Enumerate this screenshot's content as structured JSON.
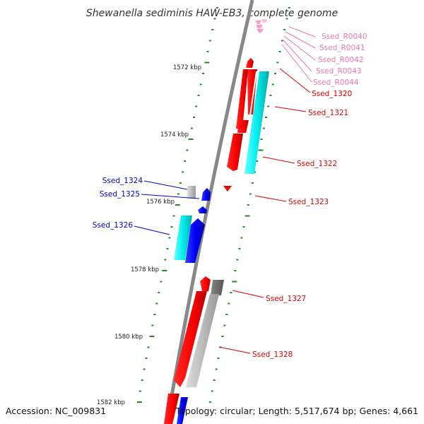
{
  "map": {
    "title": "Shewanella sediminis HAW-EB3, complete genome",
    "accession": "Accession: NC_009831",
    "summary": "Topology: circular; Length: 5,517,674 bp; Genes: 4,661"
  },
  "ticks": [
    "1572 kbp",
    "1574 kbp",
    "1576 kbp",
    "1578 kbp",
    "1580 kbp",
    "1582 kbp"
  ],
  "genes": [
    {
      "label": "Ssed_R0040",
      "color": "#ee77aa"
    },
    {
      "label": "Ssed_R0041",
      "color": "#ee77aa"
    },
    {
      "label": "Ssed_R0042",
      "color": "#ee77aa"
    },
    {
      "label": "Ssed_R0043",
      "color": "#ee77aa"
    },
    {
      "label": "Ssed_R0044",
      "color": "#ee77aa"
    },
    {
      "label": "Ssed_1320",
      "color": "#dd0000"
    },
    {
      "label": "Ssed_1321",
      "color": "#dd0000"
    },
    {
      "label": "Ssed_1322",
      "color": "#dd0000"
    },
    {
      "label": "Ssed_1323",
      "color": "#dd0000"
    },
    {
      "label": "Ssed_1324",
      "color": "#0000cc"
    },
    {
      "label": "Ssed_1325",
      "color": "#0000cc"
    },
    {
      "label": "Ssed_1326",
      "color": "#0000cc"
    },
    {
      "label": "Ssed_1327",
      "color": "#dd0000"
    },
    {
      "label": "Ssed_1328",
      "color": "#dd0000"
    }
  ],
  "colors": {
    "forward_cds": "#ff0000",
    "reverse_cds": "#0000ff",
    "cyan_feature": "#00e5ee",
    "gray_feature": "#bbbbbb",
    "backbone": "#888888",
    "gc_ticks": "#228822"
  }
}
